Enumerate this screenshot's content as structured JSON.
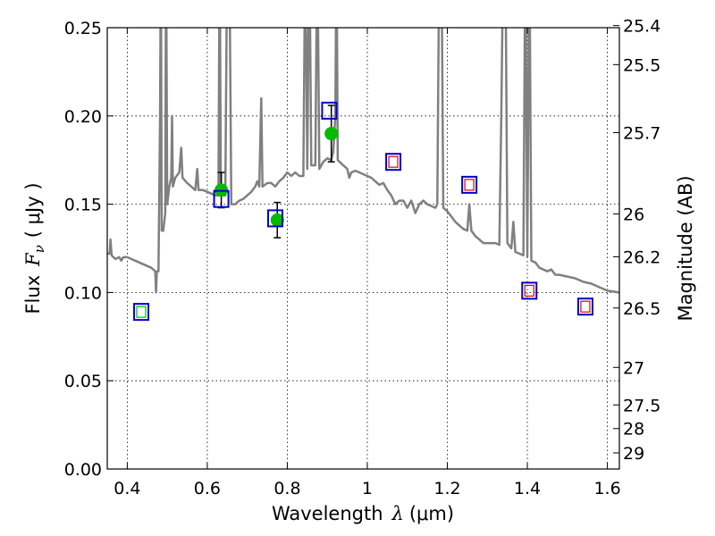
{
  "chart_data": {
    "type": "scatter",
    "title": "",
    "xlabel": "Wavelength  λ (μm)",
    "xlabel_parts": {
      "text": "Wavelength",
      "symbol": "λ",
      "unit": "(μm)"
    },
    "ylabel": "Flux  Fν  ( μJy )",
    "ylabel_parts": {
      "text": "Flux",
      "symbol": "F",
      "subscript": "ν",
      "unit": "( μJy )"
    },
    "y2label": "Magnitude (AB)",
    "xlim": [
      0.35,
      1.63
    ],
    "ylim": [
      0.0,
      0.25
    ],
    "grid": true,
    "xticks": [
      "0.4",
      "0.6",
      "0.8",
      "1",
      "1.2",
      "1.4",
      "1.6"
    ],
    "yticks": [
      "0.00",
      "0.05",
      "0.10",
      "0.15",
      "0.20",
      "0.25"
    ],
    "y2ticks": [
      "25.4",
      "25.5",
      "25.7",
      "26",
      "26.2",
      "26.5",
      "27",
      "27.5",
      "28",
      "29"
    ],
    "colors": {
      "spectrum": "#808080",
      "observed_marker": "#00bb00",
      "box_outer": "#0000cc",
      "box_inner_green": "#00bb00",
      "box_inner_red": "#dd0000",
      "errorbar": "#000000"
    },
    "series": [
      {
        "kind": "line",
        "points": [
          [
            0.35,
            0.122
          ],
          [
            0.356,
            0.122
          ],
          [
            0.358,
            0.13
          ],
          [
            0.361,
            0.121
          ],
          [
            0.37,
            0.119
          ],
          [
            0.38,
            0.12
          ],
          [
            0.385,
            0.118
          ],
          [
            0.39,
            0.12
          ],
          [
            0.4,
            0.12
          ],
          [
            0.41,
            0.119
          ],
          [
            0.42,
            0.118
          ],
          [
            0.43,
            0.117
          ],
          [
            0.44,
            0.116
          ],
          [
            0.45,
            0.115
          ],
          [
            0.46,
            0.114
          ],
          [
            0.465,
            0.113
          ],
          [
            0.47,
            0.112
          ],
          [
            0.472,
            0.1
          ],
          [
            0.474,
            0.112
          ],
          [
            0.478,
            0.112
          ],
          [
            0.482,
            0.2
          ],
          [
            0.484,
            0.3
          ],
          [
            0.486,
            0.135
          ],
          [
            0.49,
            0.135
          ],
          [
            0.495,
            0.145
          ],
          [
            0.497,
            0.3
          ],
          [
            0.5,
            0.15
          ],
          [
            0.505,
            0.16
          ],
          [
            0.51,
            0.165
          ],
          [
            0.512,
            0.2
          ],
          [
            0.514,
            0.16
          ],
          [
            0.52,
            0.165
          ],
          [
            0.53,
            0.168
          ],
          [
            0.535,
            0.182
          ],
          [
            0.538,
            0.165
          ],
          [
            0.55,
            0.162
          ],
          [
            0.56,
            0.16
          ],
          [
            0.57,
            0.158
          ],
          [
            0.575,
            0.17
          ],
          [
            0.578,
            0.158
          ],
          [
            0.59,
            0.158
          ],
          [
            0.6,
            0.157
          ],
          [
            0.61,
            0.156
          ],
          [
            0.62,
            0.155
          ],
          [
            0.628,
            0.155
          ],
          [
            0.631,
            0.3
          ],
          [
            0.634,
            0.155
          ],
          [
            0.645,
            0.155
          ],
          [
            0.65,
            0.3
          ],
          [
            0.655,
            0.3
          ],
          [
            0.66,
            0.15
          ],
          [
            0.67,
            0.15
          ],
          [
            0.68,
            0.152
          ],
          [
            0.69,
            0.153
          ],
          [
            0.7,
            0.155
          ],
          [
            0.71,
            0.157
          ],
          [
            0.72,
            0.16
          ],
          [
            0.725,
            0.163
          ],
          [
            0.73,
            0.16
          ],
          [
            0.735,
            0.21
          ],
          [
            0.738,
            0.16
          ],
          [
            0.75,
            0.162
          ],
          [
            0.76,
            0.162
          ],
          [
            0.77,
            0.16
          ],
          [
            0.78,
            0.163
          ],
          [
            0.79,
            0.165
          ],
          [
            0.8,
            0.168
          ],
          [
            0.81,
            0.166
          ],
          [
            0.82,
            0.168
          ],
          [
            0.83,
            0.166
          ],
          [
            0.84,
            0.166
          ],
          [
            0.845,
            0.3
          ],
          [
            0.85,
            0.17
          ],
          [
            0.855,
            0.3
          ],
          [
            0.86,
            0.172
          ],
          [
            0.87,
            0.172
          ],
          [
            0.875,
            0.3
          ],
          [
            0.88,
            0.17
          ],
          [
            0.89,
            0.174
          ],
          [
            0.9,
            0.176
          ],
          [
            0.91,
            0.175
          ],
          [
            0.915,
            0.18
          ],
          [
            0.92,
            0.2
          ],
          [
            0.923,
            0.3
          ],
          [
            0.926,
            0.175
          ],
          [
            0.94,
            0.172
          ],
          [
            0.95,
            0.17
          ],
          [
            0.955,
            0.165
          ],
          [
            0.96,
            0.168
          ],
          [
            0.97,
            0.169
          ],
          [
            0.98,
            0.168
          ],
          [
            0.99,
            0.167
          ],
          [
            1.0,
            0.166
          ],
          [
            1.01,
            0.165
          ],
          [
            1.02,
            0.163
          ],
          [
            1.03,
            0.161
          ],
          [
            1.04,
            0.162
          ],
          [
            1.05,
            0.158
          ],
          [
            1.06,
            0.155
          ],
          [
            1.07,
            0.15
          ],
          [
            1.08,
            0.152
          ],
          [
            1.09,
            0.152
          ],
          [
            1.1,
            0.148
          ],
          [
            1.11,
            0.152
          ],
          [
            1.12,
            0.145
          ],
          [
            1.13,
            0.15
          ],
          [
            1.14,
            0.152
          ],
          [
            1.15,
            0.15
          ],
          [
            1.16,
            0.149
          ],
          [
            1.17,
            0.148
          ],
          [
            1.175,
            0.15
          ],
          [
            1.18,
            0.3
          ],
          [
            1.185,
            0.3
          ],
          [
            1.19,
            0.148
          ],
          [
            1.2,
            0.146
          ],
          [
            1.21,
            0.143
          ],
          [
            1.22,
            0.14
          ],
          [
            1.23,
            0.138
          ],
          [
            1.24,
            0.136
          ],
          [
            1.25,
            0.135
          ],
          [
            1.255,
            0.15
          ],
          [
            1.26,
            0.135
          ],
          [
            1.27,
            0.132
          ],
          [
            1.28,
            0.13
          ],
          [
            1.29,
            0.128
          ],
          [
            1.3,
            0.128
          ],
          [
            1.31,
            0.128
          ],
          [
            1.32,
            0.128
          ],
          [
            1.33,
            0.127
          ],
          [
            1.335,
            0.2
          ],
          [
            1.34,
            0.3
          ],
          [
            1.345,
            0.3
          ],
          [
            1.35,
            0.128
          ],
          [
            1.36,
            0.125
          ],
          [
            1.365,
            0.14
          ],
          [
            1.37,
            0.123
          ],
          [
            1.38,
            0.122
          ],
          [
            1.39,
            0.121
          ],
          [
            1.395,
            0.3
          ],
          [
            1.4,
            0.12
          ],
          [
            1.405,
            0.3
          ],
          [
            1.41,
            0.118
          ],
          [
            1.42,
            0.117
          ],
          [
            1.43,
            0.114
          ],
          [
            1.44,
            0.113
          ],
          [
            1.45,
            0.112
          ],
          [
            1.46,
            0.113
          ],
          [
            1.47,
            0.11
          ],
          [
            1.48,
            0.11
          ],
          [
            1.5,
            0.109
          ],
          [
            1.52,
            0.108
          ],
          [
            1.54,
            0.106
          ],
          [
            1.56,
            0.105
          ],
          [
            1.58,
            0.103
          ],
          [
            1.6,
            0.101
          ],
          [
            1.63,
            0.1
          ]
        ]
      },
      {
        "kind": "observed",
        "points": [
          {
            "x": 0.635,
            "y": 0.158,
            "err": 0.01
          },
          {
            "x": 0.775,
            "y": 0.141,
            "err": 0.01
          },
          {
            "x": 0.91,
            "y": 0.19,
            "err": 0.016
          }
        ]
      },
      {
        "kind": "model_box",
        "points": [
          {
            "x": 0.435,
            "y": 0.089,
            "inner": "green",
            "outer": true
          },
          {
            "x": 0.635,
            "y": 0.153,
            "inner": "none",
            "outer": true
          },
          {
            "x": 0.77,
            "y": 0.142,
            "inner": "none",
            "outer": true
          },
          {
            "x": 0.905,
            "y": 0.203,
            "inner": "none",
            "outer": true
          },
          {
            "x": 1.065,
            "y": 0.174,
            "inner": "red",
            "outer": true
          },
          {
            "x": 1.255,
            "y": 0.161,
            "inner": "red",
            "outer": true
          },
          {
            "x": 1.405,
            "y": 0.101,
            "inner": "red",
            "outer": true
          },
          {
            "x": 1.545,
            "y": 0.092,
            "inner": "red",
            "outer": true
          }
        ]
      }
    ]
  }
}
